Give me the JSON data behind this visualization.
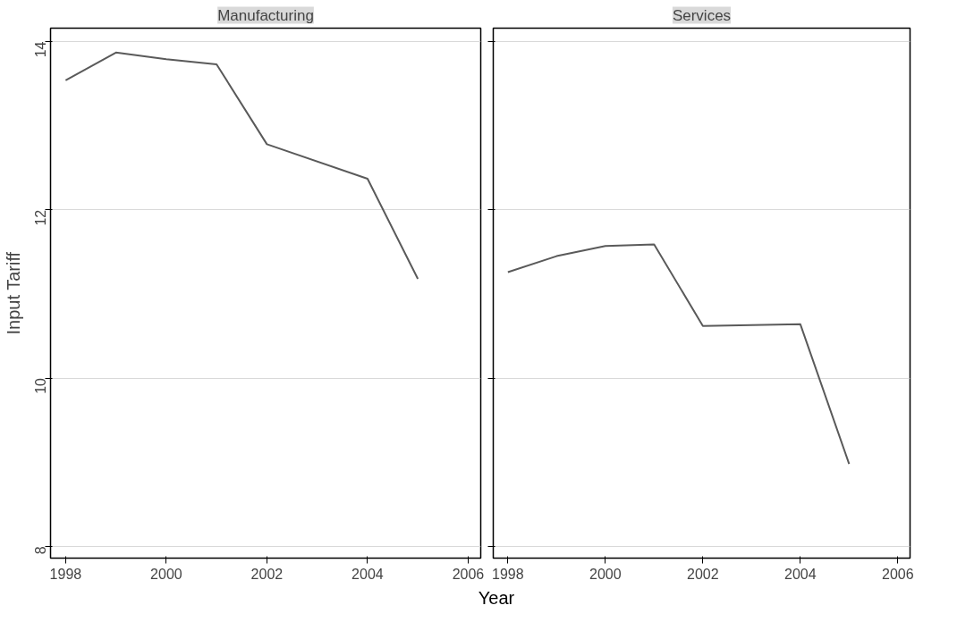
{
  "chart_data": [
    {
      "type": "line",
      "title": "Manufacturing",
      "ylabel": "Input Tariff",
      "xlabel": "Year",
      "x": [
        1998,
        1999,
        2000,
        2001,
        2002,
        2004,
        2005
      ],
      "series": [
        {
          "color": "#5a5a5a",
          "values": [
            13.54,
            13.87,
            13.79,
            13.73,
            12.78,
            12.37,
            11.18
          ]
        }
      ],
      "xlim": [
        1997.7,
        2006.25
      ],
      "xticks": [
        1998,
        2000,
        2002,
        2004,
        2006
      ],
      "ylim": [
        7.86,
        14.16
      ],
      "yticks": [
        8,
        10,
        12,
        14
      ],
      "grid": "y"
    },
    {
      "type": "line",
      "title": "Services",
      "x": [
        1998,
        1999,
        2000,
        2001,
        2002,
        2004,
        2005
      ],
      "series": [
        {
          "color": "#5a5a5a",
          "values": [
            11.26,
            11.45,
            11.57,
            11.59,
            10.62,
            10.64,
            8.98
          ]
        }
      ],
      "xlim": [
        1997.7,
        2006.25
      ],
      "xticks": [
        1998,
        2000,
        2002,
        2004,
        2006
      ],
      "ylim": [
        7.86,
        14.16
      ],
      "yticks": [
        8,
        10,
        12,
        14
      ],
      "grid": "y",
      "tick_labels": "x"
    }
  ]
}
